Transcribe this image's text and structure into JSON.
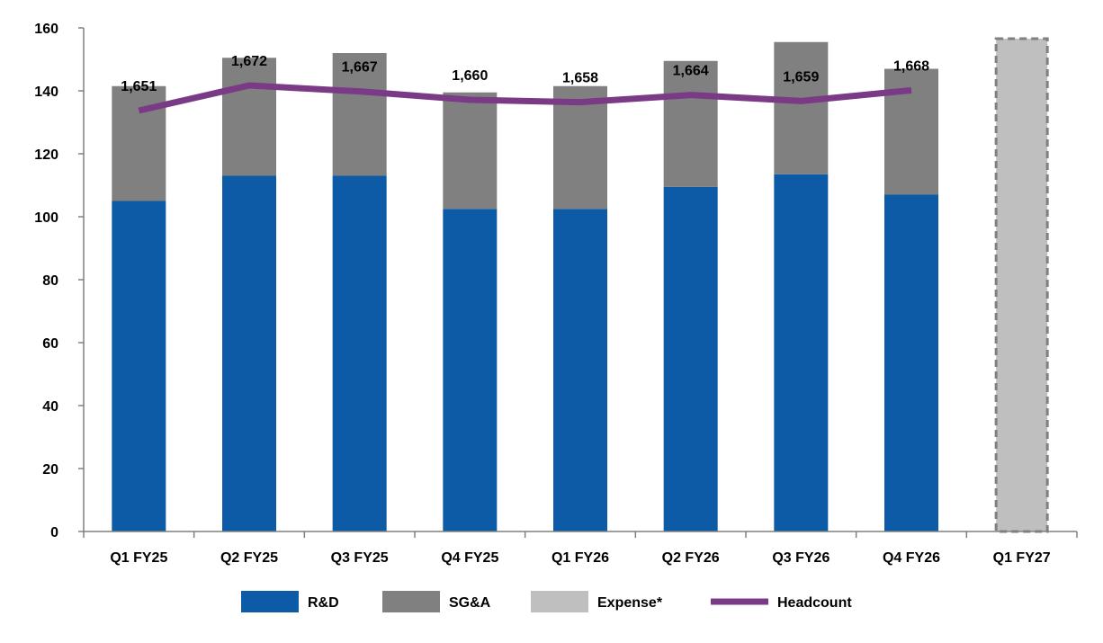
{
  "chart_data": {
    "type": "bar",
    "stacked": true,
    "categories": [
      "Q1 FY25",
      "Q2 FY25",
      "Q3 FY25",
      "Q4 FY25",
      "Q1 FY26",
      "Q2 FY26",
      "Q3 FY26",
      "Q4 FY26",
      "Q1 FY27"
    ],
    "series": [
      {
        "name": "R&D",
        "color": "#0d5aa7",
        "values": [
          105,
          113,
          113,
          102.5,
          102.5,
          109.5,
          113.5,
          107,
          null
        ]
      },
      {
        "name": "SG&A",
        "color": "#808080",
        "values": [
          36.5,
          37.5,
          39,
          37,
          39,
          40,
          42,
          40,
          null
        ]
      },
      {
        "name": "Expense*",
        "color": "#bfbfbf",
        "border": "#808080",
        "values": [
          null,
          null,
          null,
          null,
          null,
          null,
          null,
          null,
          157
        ]
      }
    ],
    "line_series": {
      "name": "Headcount",
      "color": "#7b3a86",
      "values": [
        1651,
        1672,
        1667,
        1660,
        1658,
        1664,
        1659,
        1668
      ],
      "labels": [
        "1,651",
        "1,672",
        "1,667",
        "1,660",
        "1,658",
        "1,664",
        "1,659",
        "1,668"
      ]
    },
    "y_ticks": [
      "0",
      "20",
      "40",
      "60",
      "80",
      "100",
      "120",
      "140",
      "160"
    ],
    "ylim": [
      0,
      160
    ],
    "grid": false,
    "legend_position": "bottom",
    "title": "",
    "xlabel": "",
    "ylabel": ""
  }
}
